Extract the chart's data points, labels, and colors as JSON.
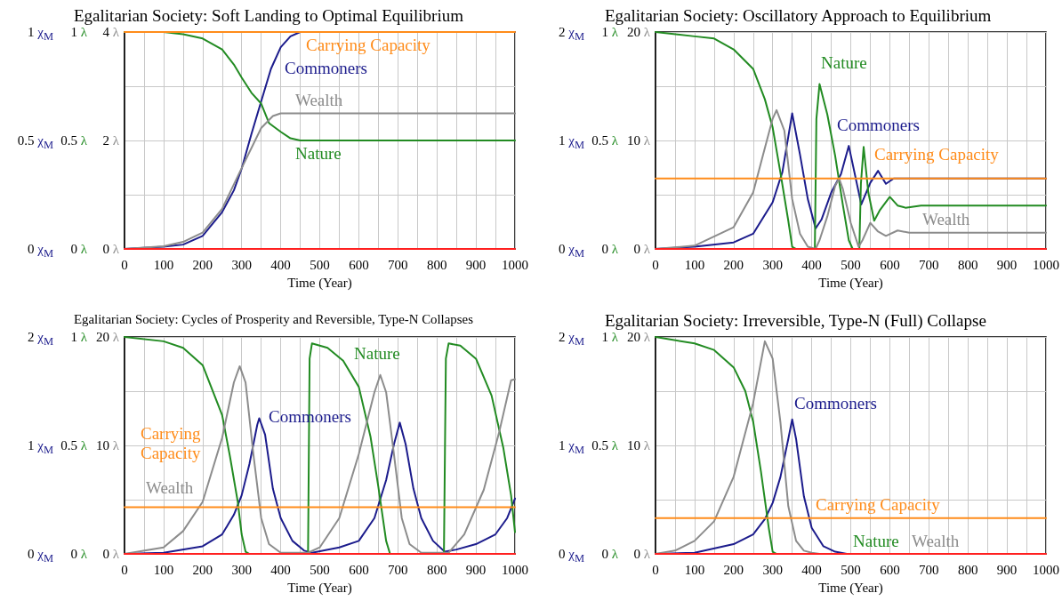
{
  "chart_data": [
    {
      "type": "line",
      "title": "Egalitarian Society: Soft Landing to Optimal Equilibrium",
      "xlabel": "Time (Year)",
      "xlim": [
        0,
        1000
      ],
      "xticks": [
        0,
        {
          "value": 50,
          "label": null
        },
        100,
        {
          "value": 150,
          "label": null
        },
        200,
        {
          "value": 250,
          "label": null
        },
        300,
        {
          "value": 350,
          "label": null
        },
        400,
        {
          "value": 450,
          "label": null
        },
        500,
        {
          "value": 550,
          "label": null
        },
        600,
        {
          "value": 650,
          "label": null
        },
        700,
        {
          "value": 750,
          "label": null
        },
        800,
        {
          "value": 850,
          "label": null
        },
        900,
        {
          "value": 950,
          "label": null
        },
        1000
      ],
      "ylim": [
        0,
        1
      ],
      "yticks": [
        {
          "value": 0,
          "label": "0 χ$_{M}$"
        },
        {
          "value": 0.25,
          "label": null
        },
        {
          "value": 0.5,
          "label": "0.5 χ$_{M}$"
        },
        {
          "value": 0.75,
          "label": null
        },
        {
          "value": 1,
          "label": "1 χ$_{M}$"
        }
      ],
      "y2lim": [
        0,
        1
      ],
      "y2ticks": [
        {
          "value": 0,
          "label": "0 λ"
        },
        {
          "value": 0.5,
          "label": "0.5 λ"
        },
        {
          "value": 1,
          "label": "1 λ"
        }
      ],
      "y3lim": [
        0,
        4
      ],
      "y3ticks": [
        {
          "value": 0,
          "label": "0 λ"
        },
        {
          "value": 2,
          "label": "2 λ"
        },
        {
          "value": 4,
          "label": "4 λ"
        }
      ],
      "grid": true,
      "marker": "none",
      "line_style": "solid",
      "series": [
        {
          "name": "Commoners",
          "color": "#1c1c8c",
          "axis": "y",
          "x": [
            0,
            100,
            150,
            200,
            250,
            280,
            300,
            325,
            350,
            375,
            400,
            425,
            450,
            1000
          ],
          "values": [
            0,
            0.01,
            0.02,
            0.06,
            0.17,
            0.27,
            0.37,
            0.53,
            0.68,
            0.83,
            0.93,
            0.98,
            1,
            1
          ]
        },
        {
          "name": "Nature",
          "color": "#228b22",
          "axis": "y2",
          "x": [
            0,
            100,
            150,
            200,
            250,
            280,
            300,
            325,
            350,
            370,
            400,
            425,
            450,
            1000
          ],
          "values": [
            1,
            1,
            0.99,
            0.97,
            0.92,
            0.85,
            0.79,
            0.72,
            0.67,
            0.58,
            0.54,
            0.51,
            0.5,
            0.5
          ]
        },
        {
          "name": "Wealth",
          "color": "#8c8c8c",
          "axis": "y3",
          "x": [
            0,
            100,
            150,
            200,
            250,
            300,
            350,
            380,
            400,
            1000
          ],
          "values": [
            0,
            0.05,
            0.13,
            0.3,
            0.74,
            1.49,
            2.23,
            2.45,
            2.5,
            2.5
          ]
        },
        {
          "name": "Carrying Capacity",
          "color": "#ff8c1a",
          "axis": "y",
          "x": [
            0,
            1000
          ],
          "values": [
            1,
            1
          ]
        },
        {
          "color": "#ff2020",
          "axis": "y",
          "x": [
            0,
            1000
          ],
          "values": [
            0,
            0
          ]
        }
      ]
    },
    {
      "type": "line",
      "title": "Egalitarian Society: Oscillatory Approach to Equilibrium",
      "xlabel": "Time (Year)",
      "xlim": [
        0,
        1000
      ],
      "xticks": [
        0,
        {
          "value": 50,
          "label": null
        },
        100,
        {
          "value": 150,
          "label": null
        },
        200,
        {
          "value": 250,
          "label": null
        },
        300,
        {
          "value": 350,
          "label": null
        },
        400,
        {
          "value": 450,
          "label": null
        },
        500,
        {
          "value": 550,
          "label": null
        },
        600,
        {
          "value": 650,
          "label": null
        },
        700,
        {
          "value": 750,
          "label": null
        },
        800,
        {
          "value": 850,
          "label": null
        },
        900,
        {
          "value": 950,
          "label": null
        },
        1000
      ],
      "ylim": [
        0,
        2
      ],
      "yticks": [
        {
          "value": 0,
          "label": "0 χ$_{M}$"
        },
        {
          "value": 0.5,
          "label": null
        },
        {
          "value": 1,
          "label": "1 χ$_{M}$"
        },
        {
          "value": 1.5,
          "label": null
        },
        {
          "value": 2,
          "label": "2 χ$_{M}$"
        }
      ],
      "y2lim": [
        0,
        1
      ],
      "y2ticks": [
        {
          "value": 0,
          "label": "0 λ"
        },
        {
          "value": 0.5,
          "label": "0.5 λ"
        },
        {
          "value": 1,
          "label": "1 λ"
        }
      ],
      "y3lim": [
        0,
        20
      ],
      "y3ticks": [
        {
          "value": 0,
          "label": "0 λ"
        },
        {
          "value": 10,
          "label": "10 λ"
        },
        {
          "value": 20,
          "label": "20 λ"
        }
      ],
      "grid": true,
      "marker": "none",
      "line_style": "solid",
      "series": [
        {
          "name": "Commoners",
          "color": "#1c1c8c",
          "axis": "y",
          "x": [
            0,
            100,
            200,
            250,
            300,
            325,
            350,
            370,
            390,
            410,
            425,
            450,
            475,
            495,
            527,
            550,
            570,
            590,
            610,
            630,
            1000
          ],
          "values": [
            0,
            0.02,
            0.06,
            0.14,
            0.43,
            0.71,
            1.25,
            0.87,
            0.46,
            0.19,
            0.27,
            0.52,
            0.69,
            0.95,
            0.41,
            0.61,
            0.72,
            0.6,
            0.65,
            0.65,
            0.65
          ]
        },
        {
          "name": "Nature",
          "color": "#228b22",
          "axis": "y2",
          "x": [
            0,
            100,
            150,
            200,
            250,
            280,
            300,
            320,
            340,
            350,
            360,
            408,
            412,
            420,
            440,
            460,
            480,
            495,
            505,
            522,
            526,
            533,
            545,
            560,
            575,
            600,
            620,
            640,
            680,
            1000
          ],
          "values": [
            1,
            0.98,
            0.97,
            0.92,
            0.83,
            0.69,
            0.56,
            0.35,
            0.13,
            0.01,
            0,
            0,
            0.6,
            0.76,
            0.62,
            0.43,
            0.2,
            0.04,
            0,
            0,
            0.3,
            0.47,
            0.26,
            0.13,
            0.18,
            0.24,
            0.2,
            0.19,
            0.2,
            0.2
          ]
        },
        {
          "name": "Wealth",
          "color": "#8c8c8c",
          "axis": "y3",
          "x": [
            0,
            100,
            200,
            250,
            280,
            300,
            310,
            330,
            350,
            370,
            390,
            410,
            420,
            440,
            460,
            470,
            480,
            500,
            520,
            530,
            550,
            570,
            590,
            620,
            650,
            1000
          ],
          "values": [
            0,
            0.3,
            2,
            5.2,
            9.3,
            12,
            12.8,
            10.9,
            4.6,
            1.4,
            0.2,
            0,
            0.8,
            3,
            5.8,
            6.5,
            5.5,
            2.4,
            0.2,
            0.8,
            2.4,
            1.6,
            1.2,
            1.7,
            1.5,
            1.5
          ]
        },
        {
          "name": "Carrying Capacity",
          "color": "#ff8c1a",
          "axis": "y",
          "x": [
            0,
            1000
          ],
          "values": [
            0.65,
            0.65
          ]
        },
        {
          "color": "#ff2020",
          "axis": "y",
          "x": [
            0,
            1000
          ],
          "values": [
            0,
            0
          ]
        }
      ]
    },
    {
      "type": "line",
      "title": "Egalitarian Society: Cycles of Prosperity and Reversible, Type-N Collapses",
      "xlabel": "Time (Year)",
      "xlim": [
        0,
        1000
      ],
      "xticks": [
        0,
        {
          "value": 50,
          "label": null
        },
        100,
        {
          "value": 150,
          "label": null
        },
        200,
        {
          "value": 250,
          "label": null
        },
        300,
        {
          "value": 350,
          "label": null
        },
        400,
        {
          "value": 450,
          "label": null
        },
        500,
        {
          "value": 550,
          "label": null
        },
        600,
        {
          "value": 650,
          "label": null
        },
        700,
        {
          "value": 750,
          "label": null
        },
        800,
        {
          "value": 850,
          "label": null
        },
        900,
        {
          "value": 950,
          "label": null
        },
        1000
      ],
      "ylim": [
        0,
        2
      ],
      "yticks": [
        {
          "value": 0,
          "label": "0 χ$_{M}$"
        },
        {
          "value": 0.5,
          "label": null
        },
        {
          "value": 1,
          "label": "1 χ$_{M}$"
        },
        {
          "value": 1.5,
          "label": null
        },
        {
          "value": 2,
          "label": "2 χ$_{M}$"
        }
      ],
      "y2lim": [
        0,
        1
      ],
      "y2ticks": [
        {
          "value": 0,
          "label": "0 λ"
        },
        {
          "value": 0.5,
          "label": "0.5 λ"
        },
        {
          "value": 1,
          "label": "1 λ"
        }
      ],
      "y3lim": [
        0,
        20
      ],
      "y3ticks": [
        {
          "value": 0,
          "label": "0 λ"
        },
        {
          "value": 10,
          "label": "10 λ"
        },
        {
          "value": 20,
          "label": "20 λ"
        }
      ],
      "grid": true,
      "marker": "none",
      "line_style": "solid",
      "series": [
        {
          "name": "Commoners",
          "color": "#1c1c8c",
          "axis": "y",
          "x": [
            0,
            100,
            200,
            250,
            280,
            300,
            320,
            340,
            345,
            360,
            380,
            400,
            430,
            460,
            480,
            550,
            600,
            640,
            670,
            690,
            705,
            720,
            740,
            760,
            790,
            820,
            850,
            900,
            950,
            980,
            1000
          ],
          "values": [
            0,
            0.01,
            0.07,
            0.18,
            0.36,
            0.54,
            0.83,
            1.19,
            1.25,
            1.1,
            0.6,
            0.33,
            0.12,
            0.03,
            0.01,
            0.06,
            0.12,
            0.33,
            0.68,
            1.01,
            1.21,
            1.01,
            0.6,
            0.33,
            0.12,
            0.02,
            0.04,
            0.09,
            0.18,
            0.33,
            0.51
          ]
        },
        {
          "name": "Nature",
          "color": "#228b22",
          "axis": "y2",
          "x": [
            0,
            100,
            150,
            200,
            250,
            270,
            290,
            300,
            310,
            320,
            470,
            474,
            480,
            520,
            560,
            600,
            630,
            650,
            670,
            680,
            818,
            823,
            830,
            860,
            900,
            940,
            970,
            990,
            1000
          ],
          "values": [
            1,
            0.98,
            0.95,
            0.87,
            0.64,
            0.45,
            0.24,
            0.09,
            0.01,
            0,
            0,
            0.9,
            0.97,
            0.95,
            0.89,
            0.77,
            0.54,
            0.31,
            0.06,
            0,
            0,
            0.9,
            0.97,
            0.96,
            0.9,
            0.73,
            0.49,
            0.27,
            0.1
          ]
        },
        {
          "name": "Wealth",
          "color": "#8c8c8c",
          "axis": "y3",
          "x": [
            0,
            100,
            150,
            200,
            250,
            280,
            295,
            310,
            330,
            350,
            370,
            400,
            470,
            500,
            550,
            600,
            640,
            655,
            670,
            690,
            710,
            730,
            760,
            830,
            870,
            920,
            960,
            990,
            1000
          ],
          "values": [
            0,
            0.6,
            2.1,
            4.8,
            10.7,
            15.8,
            17.3,
            15.8,
            9.2,
            3.3,
            0.9,
            0.1,
            0.1,
            0.6,
            3.3,
            9.2,
            14.9,
            16.5,
            14.9,
            9.2,
            3.3,
            0.9,
            0.1,
            0.1,
            1.8,
            5.9,
            11.3,
            16,
            16.1
          ]
        },
        {
          "name": "Carrying Capacity",
          "color": "#ff8c1a",
          "axis": "y",
          "x": [
            0,
            1000
          ],
          "values": [
            0.43,
            0.43
          ]
        },
        {
          "color": "#ff2020",
          "axis": "y",
          "x": [
            0,
            1000
          ],
          "values": [
            0,
            0
          ]
        }
      ]
    },
    {
      "type": "line",
      "title": "Egalitarian Society: Irreversible, Type-N (Full) Collapse",
      "xlabel": "Time (Year)",
      "xlim": [
        0,
        1000
      ],
      "xticks": [
        0,
        {
          "value": 50,
          "label": null
        },
        100,
        {
          "value": 150,
          "label": null
        },
        200,
        {
          "value": 250,
          "label": null
        },
        300,
        {
          "value": 350,
          "label": null
        },
        400,
        {
          "value": 450,
          "label": null
        },
        500,
        {
          "value": 550,
          "label": null
        },
        600,
        {
          "value": 650,
          "label": null
        },
        700,
        {
          "value": 750,
          "label": null
        },
        800,
        {
          "value": 850,
          "label": null
        },
        900,
        {
          "value": 950,
          "label": null
        },
        1000
      ],
      "ylim": [
        0,
        2
      ],
      "yticks": [
        {
          "value": 0,
          "label": "0 χ$_{M}$"
        },
        {
          "value": 0.5,
          "label": null
        },
        {
          "value": 1,
          "label": "1 χ$_{M}$"
        },
        {
          "value": 1.5,
          "label": null
        },
        {
          "value": 2,
          "label": "2 χ$_{M}$"
        }
      ],
      "y2lim": [
        0,
        1
      ],
      "y2ticks": [
        {
          "value": 0,
          "label": "0 λ"
        },
        {
          "value": 0.5,
          "label": "0.5 λ"
        },
        {
          "value": 1,
          "label": "1 λ"
        }
      ],
      "y3lim": [
        0,
        20
      ],
      "y3ticks": [
        {
          "value": 0,
          "label": "0 λ"
        },
        {
          "value": 10,
          "label": "10 λ"
        },
        {
          "value": 20,
          "label": "20 λ"
        }
      ],
      "grid": true,
      "marker": "none",
      "line_style": "solid",
      "series": [
        {
          "name": "Commoners",
          "color": "#1c1c8c",
          "axis": "y",
          "x": [
            0,
            100,
            200,
            250,
            280,
            300,
            320,
            340,
            350,
            360,
            380,
            400,
            430,
            460,
            490,
            1000
          ],
          "values": [
            0,
            0.01,
            0.09,
            0.18,
            0.32,
            0.47,
            0.71,
            1.06,
            1.24,
            1.06,
            0.53,
            0.24,
            0.07,
            0.02,
            0,
            0
          ]
        },
        {
          "name": "Nature",
          "color": "#228b22",
          "axis": "y2",
          "x": [
            0,
            100,
            150,
            200,
            230,
            250,
            270,
            290,
            300,
            310,
            1000
          ],
          "values": [
            1,
            0.97,
            0.94,
            0.86,
            0.75,
            0.61,
            0.38,
            0.12,
            0.01,
            0,
            0
          ]
        },
        {
          "name": "Wealth",
          "color": "#8c8c8c",
          "axis": "y3",
          "x": [
            0,
            50,
            100,
            150,
            200,
            250,
            280,
            300,
            320,
            340,
            360,
            380,
            400,
            420,
            1000
          ],
          "values": [
            0,
            0.3,
            1.2,
            3,
            7.1,
            13.9,
            19.6,
            18,
            12.1,
            4.4,
            1.2,
            0.3,
            0.1,
            0,
            0
          ]
        },
        {
          "name": "Carrying Capacity",
          "color": "#ff8c1a",
          "axis": "y",
          "x": [
            0,
            1000
          ],
          "values": [
            0.33,
            0.33
          ]
        },
        {
          "color": "#ff2020",
          "axis": "y",
          "x": [
            0,
            1000
          ],
          "values": [
            0,
            0
          ]
        }
      ]
    }
  ]
}
